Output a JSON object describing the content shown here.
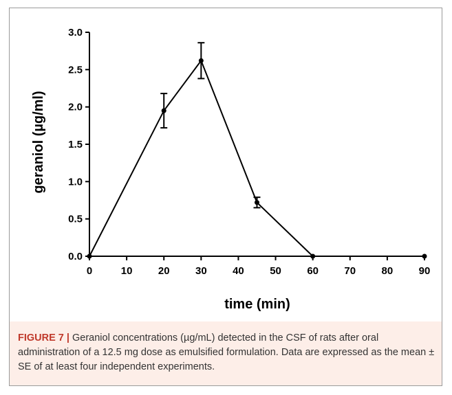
{
  "chart_data": {
    "type": "line",
    "xlabel": "time (min)",
    "ylabel": "geraniol (µg/ml)",
    "xlim": [
      0,
      90
    ],
    "ylim": [
      0,
      3.0
    ],
    "xticks": [
      0,
      10,
      20,
      30,
      40,
      50,
      60,
      70,
      80,
      90
    ],
    "yticks": [
      "0.0",
      "0.5",
      "1.0",
      "1.5",
      "2.0",
      "2.5",
      "3.0"
    ],
    "grid": false,
    "series": [
      {
        "points": [
          {
            "x": 0,
            "y": 0.0,
            "err": 0.0
          },
          {
            "x": 20,
            "y": 1.95,
            "err": 0.23
          },
          {
            "x": 30,
            "y": 2.62,
            "err": 0.24
          },
          {
            "x": 45,
            "y": 0.72,
            "err": 0.07
          },
          {
            "x": 60,
            "y": 0.0,
            "err": 0.0
          },
          {
            "x": 90,
            "y": 0.0,
            "err": 0.0
          }
        ]
      }
    ]
  },
  "caption": {
    "label": "FIGURE 7 |",
    "text": " Geraniol concentrations (µg/mL) detected in the CSF of rats after oral administration of a 12.5 mg dose as emulsified formulation. Data are expressed as the mean ± SE of at least four independent experiments."
  }
}
